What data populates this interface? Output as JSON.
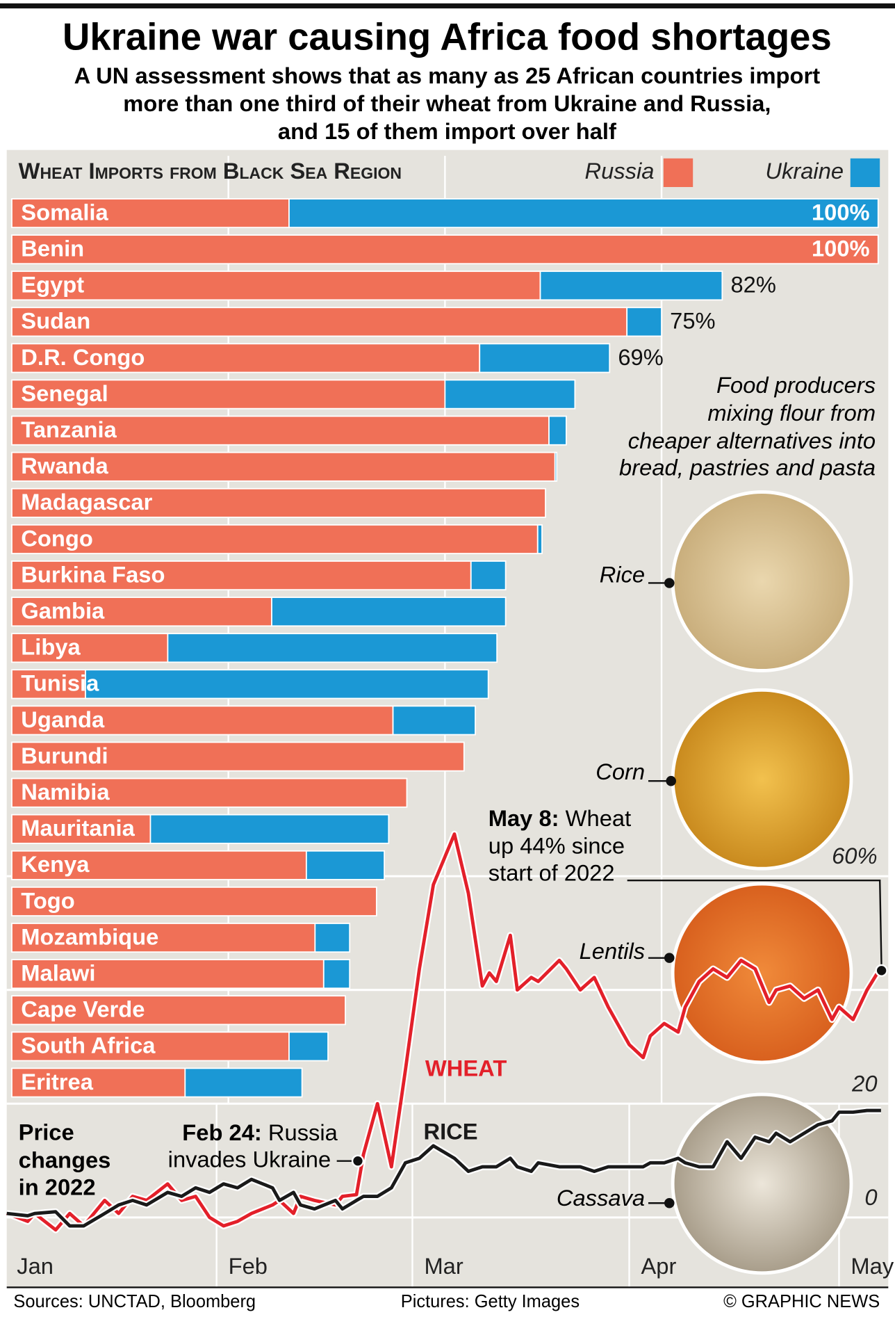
{
  "header": {
    "title": "Ukraine war causing Africa food shortages",
    "subtitle": [
      "A UN assessment shows that as many as 25 African countries import",
      "more than one third of their wheat from Ukraine and Russia,",
      "and 15 of them import over half"
    ]
  },
  "chart_data": [
    {
      "type": "bar",
      "orientation": "horizontal",
      "stacked": true,
      "title": "Wheat Imports from Black Sea Region",
      "categories": [
        "Somalia",
        "Benin",
        "Egypt",
        "Sudan",
        "D.R. Congo",
        "Senegal",
        "Tanzania",
        "Rwanda",
        "Madagascar",
        "Congo",
        "Burkina Faso",
        "Gambia",
        "Libya",
        "Tunisia",
        "Uganda",
        "Burundi",
        "Namibia",
        "Mauritania",
        "Kenya",
        "Togo",
        "Mozambique",
        "Malawi",
        "Cape Verde",
        "South Africa",
        "Eritrea"
      ],
      "series": [
        {
          "name": "Russia",
          "color": "#f07057",
          "values": [
            32,
            100,
            61,
            71,
            54,
            50,
            62,
            62.7,
            61.6,
            60.7,
            53,
            30,
            18,
            8.5,
            44,
            52.2,
            45.6,
            16,
            34,
            42.1,
            35,
            36,
            38.5,
            32,
            20
          ]
        },
        {
          "name": "Ukraine",
          "color": "#1b98d5",
          "values": [
            68,
            0,
            21,
            4,
            15,
            15,
            2,
            0.2,
            0,
            0.5,
            4,
            27,
            38,
            46.5,
            9.5,
            0,
            0,
            27.5,
            9,
            0,
            4,
            3,
            0,
            4.5,
            13.5
          ]
        }
      ],
      "value_labels": [
        "100%",
        "100%",
        "82%",
        "75%",
        "69%",
        null,
        null,
        null,
        null,
        null,
        null,
        null,
        null,
        null,
        null,
        null,
        null,
        null,
        null,
        null,
        null,
        null,
        null,
        null,
        null
      ],
      "xlim": [
        0,
        100
      ],
      "xgrid": [
        25,
        50,
        75
      ],
      "annotation": [
        "Food producers",
        "mixing flour from",
        "cheaper alternatives into",
        "bread, pastries and pasta"
      ],
      "pictures": [
        "Rice",
        "Corn",
        "Lentils",
        "Cassava"
      ]
    },
    {
      "type": "line",
      "title": [
        "Price",
        "changes",
        "in 2022"
      ],
      "x": [
        2,
        5,
        6,
        9,
        11,
        13,
        16,
        18,
        20,
        22,
        25,
        27,
        29,
        31,
        33,
        35,
        37,
        40,
        41,
        43,
        44,
        46,
        49,
        50,
        52,
        53,
        55,
        57,
        59,
        61,
        63,
        66,
        68,
        70,
        71,
        72,
        74,
        75,
        77,
        78,
        81,
        82,
        84,
        86,
        88,
        90,
        91,
        93,
        94,
        96,
        98,
        99,
        101,
        103,
        105,
        107,
        109,
        111,
        112,
        114,
        116,
        118,
        120,
        121,
        123,
        125,
        127
      ],
      "series": [
        {
          "name": "WHEAT",
          "color": "#e3202a",
          "values": [
            0.7,
            -0.7,
            0.7,
            -2.2,
            0.7,
            -1.5,
            3.0,
            0.7,
            3.7,
            3.0,
            5.9,
            3.0,
            3.7,
            0,
            -1.5,
            -0.7,
            0.7,
            2.2,
            3.0,
            0.7,
            3.7,
            3.0,
            2.2,
            3.7,
            4.0,
            11.1,
            20.0,
            8.9,
            25.9,
            43.7,
            58.5,
            67.4,
            57.0,
            40.7,
            43.0,
            41.5,
            49.6,
            40.0,
            42.2,
            41.5,
            45.2,
            43.7,
            40.0,
            42.2,
            37.0,
            32.6,
            30.4,
            28.1,
            31.9,
            34.1,
            32.6,
            37.0,
            41.5,
            43.7,
            42.2,
            45.2,
            43.7,
            37.8,
            40.0,
            40.7,
            38.5,
            40.0,
            34.8,
            37.0,
            34.8,
            40.0,
            44
          ]
        },
        {
          "name": "RICE",
          "color": "#1a1a1a",
          "values": [
            0.7,
            0.3,
            0.7,
            1.0,
            -1.5,
            -1.5,
            0.7,
            2.2,
            3.0,
            2.2,
            4.4,
            3.7,
            5.2,
            4.4,
            5.9,
            5.2,
            6.7,
            5.2,
            3.0,
            4.4,
            2.2,
            1.5,
            3.0,
            1.5,
            3.0,
            3.7,
            3.7,
            5.2,
            9.6,
            10.4,
            12.6,
            10.4,
            8.1,
            8.9,
            8.9,
            8.9,
            10.4,
            8.9,
            8.1,
            9.6,
            8.9,
            8.9,
            8.9,
            8.1,
            8.9,
            8.9,
            8.9,
            8.9,
            9.6,
            9.6,
            10.4,
            9.6,
            8.9,
            8.9,
            13.3,
            10.4,
            14.1,
            13.3,
            14.8,
            13.3,
            14.8,
            16.3,
            17.0,
            18.5,
            18.5,
            18.8,
            18.8
          ]
        }
      ],
      "xlim": [
        2,
        129
      ],
      "xticks": [
        {
          "value": 1,
          "label": "Jan"
        },
        {
          "value": 32,
          "label": "Feb"
        },
        {
          "value": 60,
          "label": "Mar"
        },
        {
          "value": 91,
          "label": "Apr"
        },
        {
          "value": 121,
          "label": "May"
        }
      ],
      "ylim": [
        0,
        60
      ],
      "yticks": [
        0,
        20,
        {
          "value": 60,
          "label": "60%"
        }
      ],
      "ygrid": [
        0,
        20,
        40,
        60
      ],
      "annotations": [
        {
          "lead": "May 8:",
          "lines": [
            " Wheat",
            "up 44% since",
            "start of 2022"
          ]
        },
        {
          "lead": "Feb 24:",
          "lines": [
            " Russia",
            "invades Ukraine"
          ]
        }
      ]
    }
  ],
  "footer": {
    "sources": "Sources: UNCTAD, Bloomberg",
    "pictures": "Pictures: Getty Images",
    "credit": "© GRAPHIC NEWS"
  }
}
